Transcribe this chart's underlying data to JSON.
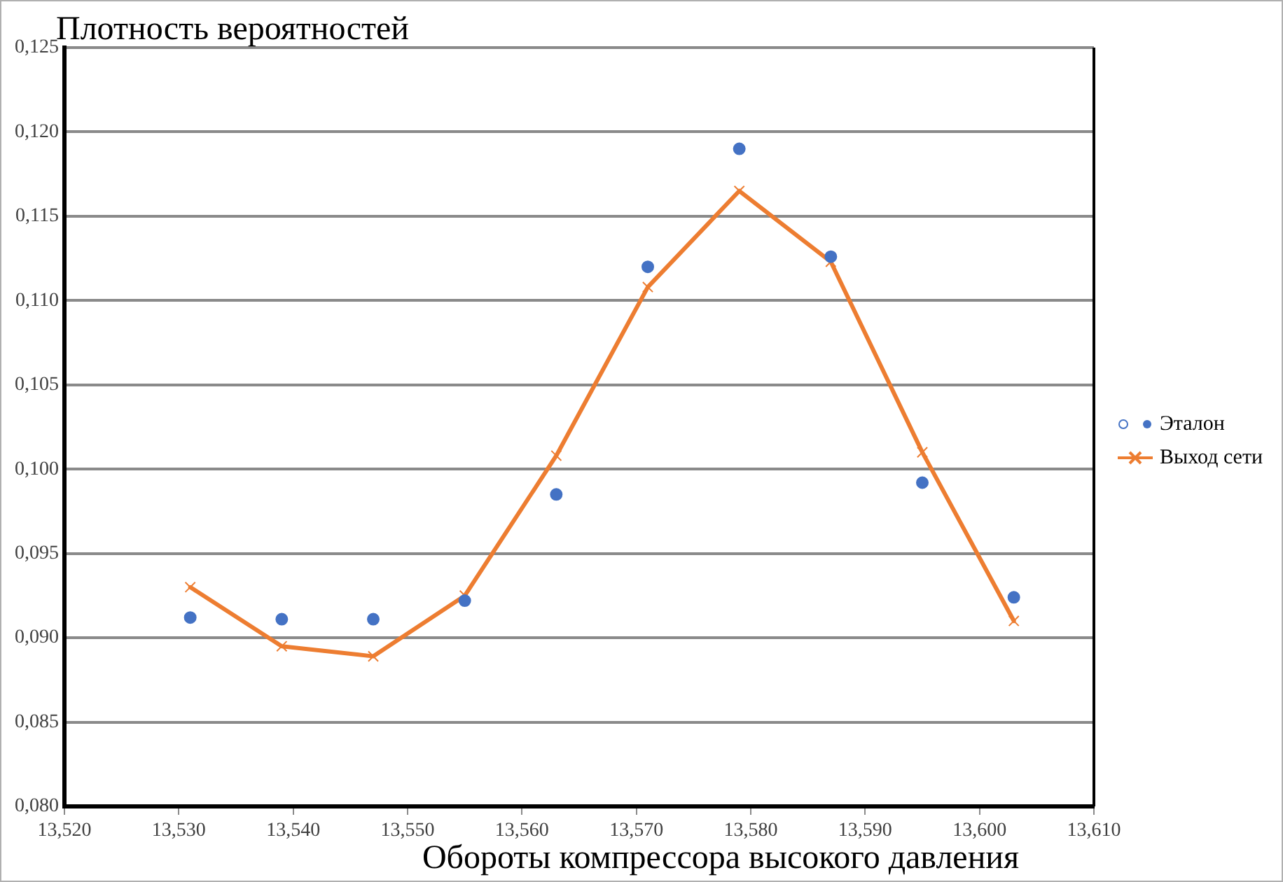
{
  "chart_data": {
    "type": "line",
    "ylabel": "Плотность вероятностей",
    "xlabel": "Обороты компрессора высокого давления",
    "series": [
      {
        "name": "Эталон",
        "type": "scatter",
        "marker": "circle",
        "color": "#4472c4",
        "x": [
          13.531,
          13.539,
          13.547,
          13.555,
          13.563,
          13.571,
          13.579,
          13.587,
          13.595,
          13.603
        ],
        "values": [
          0.0912,
          0.0911,
          0.0911,
          0.0922,
          0.0985,
          0.112,
          0.119,
          0.1126,
          0.0992,
          0.0924
        ]
      },
      {
        "name": "Выход сети",
        "marker": "cross",
        "color": "#ed7d31",
        "x": [
          13.531,
          13.539,
          13.547,
          13.555,
          13.563,
          13.571,
          13.579,
          13.587,
          13.595,
          13.603
        ],
        "values": [
          0.093,
          0.0895,
          0.0889,
          0.0925,
          0.1008,
          0.1108,
          0.1165,
          0.1123,
          0.101,
          0.091
        ]
      }
    ],
    "xlim": [
      13.52,
      13.61
    ],
    "xticks": [
      {
        "value": 13.52,
        "label": "13,520"
      },
      {
        "value": 13.53,
        "label": "13,530"
      },
      {
        "value": 13.54,
        "label": "13,540"
      },
      {
        "value": 13.55,
        "label": "13,550"
      },
      {
        "value": 13.56,
        "label": "13,560"
      },
      {
        "value": 13.57,
        "label": "13,570"
      },
      {
        "value": 13.58,
        "label": "13,580"
      },
      {
        "value": 13.59,
        "label": "13,590"
      },
      {
        "value": 13.6,
        "label": "13,600"
      },
      {
        "value": 13.61,
        "label": "13,610"
      }
    ],
    "ylim": [
      0.08,
      0.125
    ],
    "yticks": [
      {
        "value": 0.08,
        "label": "0,080"
      },
      {
        "value": 0.085,
        "label": "0,085"
      },
      {
        "value": 0.09,
        "label": "0,090"
      },
      {
        "value": 0.095,
        "label": "0,095"
      },
      {
        "value": 0.1,
        "label": "0,100"
      },
      {
        "value": 0.105,
        "label": "0,105"
      },
      {
        "value": 0.11,
        "label": "0,110"
      },
      {
        "value": 0.115,
        "label": "0,115"
      },
      {
        "value": 0.12,
        "label": "0,120"
      },
      {
        "value": 0.125,
        "label": "0,125"
      }
    ],
    "grid": "y",
    "legend": "right"
  }
}
